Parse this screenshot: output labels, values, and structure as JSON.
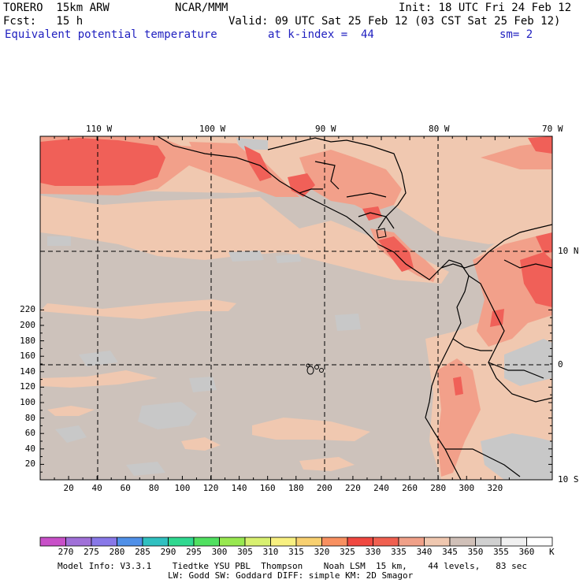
{
  "header": {
    "model": "TORERO  15km ARW",
    "center": "NCAR/MMM",
    "init": "Init: 18 UTC Fri 24 Feb 12",
    "fcst": "Fcst:   15 h",
    "valid": "Valid: 09 UTC Sat 25 Feb 12 (03 CST Sat 25 Feb 12)",
    "field": "Equivalent potential temperature",
    "level": "at k-index =  44",
    "smooth": "sm= 2"
  },
  "map": {
    "lon_labels": [
      "110 W",
      "100 W",
      "90 W",
      "80 W",
      "70 W"
    ],
    "lat_labels": [
      "10 N",
      "0",
      "10 S"
    ],
    "x_ticks": [
      "20",
      "40",
      "60",
      "80",
      "100",
      "120",
      "140",
      "160",
      "180",
      "200",
      "220",
      "240",
      "260",
      "280",
      "300",
      "320"
    ],
    "y_ticks": [
      "20",
      "40",
      "60",
      "80",
      "100",
      "120",
      "140",
      "160",
      "180",
      "200",
      "220"
    ]
  },
  "colorbar": {
    "labels": [
      "270",
      "275",
      "280",
      "285",
      "290",
      "295",
      "300",
      "305",
      "310",
      "315",
      "320",
      "325",
      "330",
      "335",
      "340",
      "345",
      "350",
      "355",
      "360"
    ],
    "unit": "K",
    "colors": [
      "#c850c8",
      "#a070d8",
      "#8878e8",
      "#5090e8",
      "#30c0c0",
      "#30d890",
      "#50e060",
      "#98e850",
      "#d8f070",
      "#f8f080",
      "#f8d070",
      "#f89060",
      "#f04840",
      "#f06050",
      "#f0a088",
      "#f0c8b0",
      "#d0c0b8",
      "#d0d0d0",
      "#f0f0f0",
      "#ffffff"
    ]
  },
  "footer": {
    "line1": "Model Info: V3.3.1    Tiedtke YSU PBL  Thompson    Noah LSM  15 km,    44 levels,   83 sec",
    "line2": "LW: Godd SW: Goddard DIFF: simple KM: 2D Smagor"
  }
}
